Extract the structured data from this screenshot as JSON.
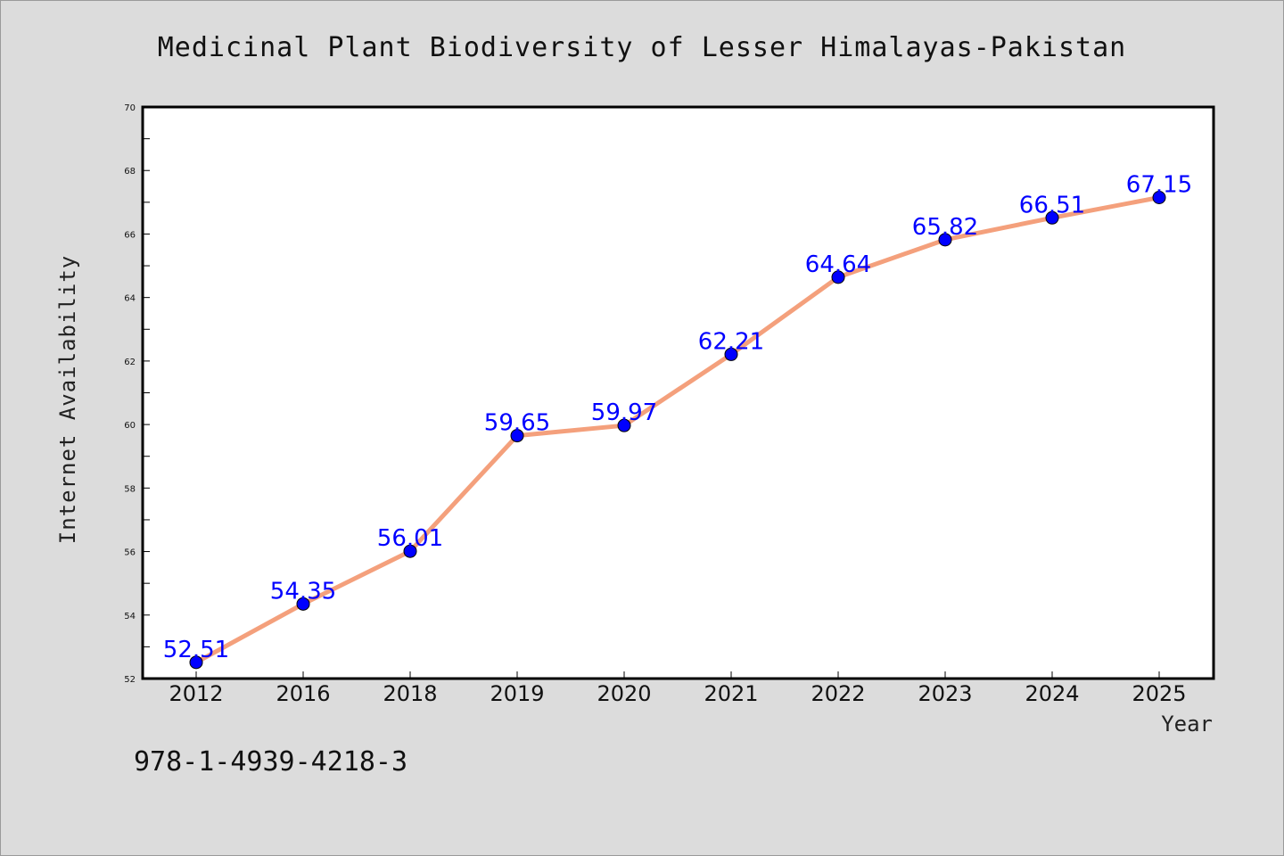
{
  "colors": {
    "background": "#dcdcdc",
    "plot_background": "#ffffff",
    "line": "#f4a07c",
    "marker": "#0000ff",
    "data_label": "#0000ff"
  },
  "footer": {
    "isbn": "978-1-4939-4218-3"
  },
  "chart_data": {
    "type": "line",
    "title": "Medicinal Plant Biodiversity of Lesser Himalayas-Pakistan",
    "xlabel": "Year",
    "ylabel": "Internet Availability",
    "categories": [
      "2012",
      "2016",
      "2018",
      "2019",
      "2020",
      "2021",
      "2022",
      "2023",
      "2024",
      "2025"
    ],
    "values": [
      52.51,
      54.35,
      56.01,
      59.65,
      59.97,
      62.21,
      64.64,
      65.82,
      66.51,
      67.15
    ],
    "data_labels": [
      "52.51",
      "54.35",
      "56.01",
      "59.65",
      "59.97",
      "62.21",
      "64.64",
      "65.82",
      "66.51",
      "67.15"
    ],
    "ylim": [
      52,
      70
    ],
    "yticks": [
      "52",
      "54",
      "56",
      "58",
      "60",
      "62",
      "64",
      "66",
      "68",
      "70"
    ],
    "grid": false,
    "legend": "none"
  }
}
